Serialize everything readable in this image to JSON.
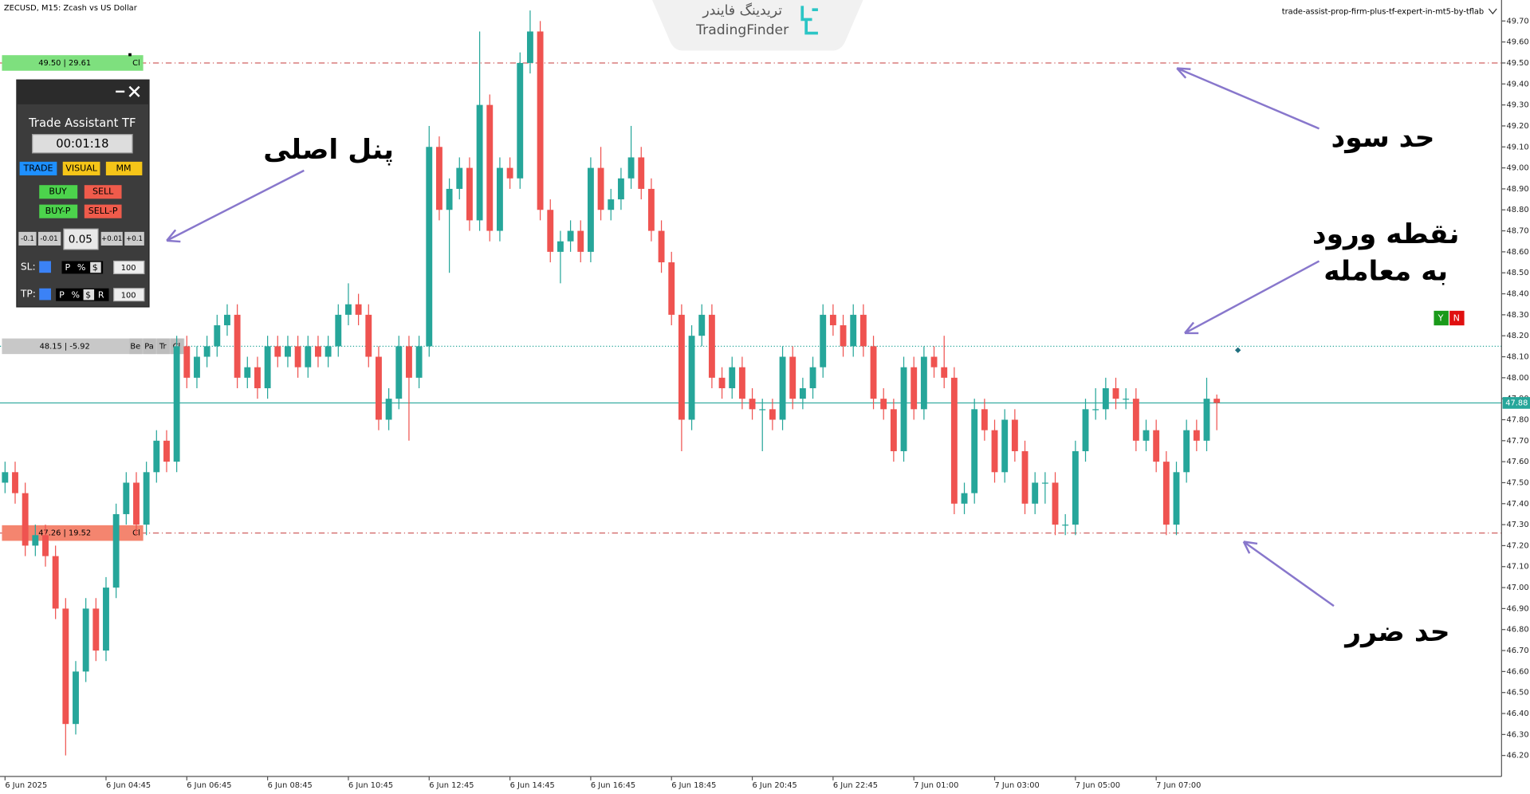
{
  "chart_data": {
    "type": "candlestick",
    "title": "ZECUSD, M15:  Zcash vs US Dollar",
    "subtitle": "trade-assist-prop-firm-plus-tf-expert-in-mt5-by-tflab",
    "up_color": "#26a69a",
    "down_color": "#ef5350",
    "open": [
      47.5,
      47.55,
      47.45,
      47.2,
      47.25,
      47.15,
      46.9,
      46.35,
      46.6,
      46.9,
      46.7,
      47.0,
      47.35,
      47.5,
      47.3,
      47.55,
      47.7,
      47.6,
      48.15,
      48.0,
      48.1,
      48.15,
      48.25,
      48.3,
      48.0,
      48.05,
      47.95,
      48.15,
      48.1,
      48.15,
      48.05,
      48.15,
      48.1,
      48.15,
      48.3,
      48.35,
      48.3,
      48.1,
      47.8,
      47.9,
      48.15,
      48.0,
      48.15,
      49.1,
      48.8,
      48.9,
      49.0,
      48.75,
      49.3,
      48.7,
      49.0,
      48.95,
      49.5,
      49.65,
      48.8,
      48.6,
      48.65,
      48.7,
      48.6,
      49.0,
      48.8,
      48.85,
      48.95,
      49.05,
      48.9,
      48.7,
      48.55,
      48.3,
      47.8,
      48.2,
      48.3,
      48.0,
      47.95,
      48.05,
      47.9,
      47.85,
      47.85,
      47.8,
      48.1,
      47.9,
      47.95,
      48.05,
      48.3,
      48.25,
      48.15,
      48.3,
      48.15,
      47.9,
      47.85,
      47.65,
      48.05,
      47.85,
      48.1,
      48.05,
      48.0,
      47.4,
      47.45,
      47.85,
      47.75,
      47.55,
      47.8,
      47.65,
      47.4,
      47.5,
      47.5,
      47.3,
      47.3,
      47.65,
      47.85,
      47.85,
      47.95,
      47.9,
      47.9,
      47.7,
      47.75,
      47.6,
      47.3,
      47.55,
      47.75,
      47.7,
      47.9
    ],
    "high": [
      47.6,
      47.6,
      47.5,
      47.3,
      47.3,
      47.2,
      46.95,
      46.65,
      46.95,
      46.95,
      47.05,
      47.4,
      47.55,
      47.55,
      47.6,
      47.75,
      47.75,
      48.2,
      48.2,
      48.15,
      48.2,
      48.3,
      48.35,
      48.35,
      48.1,
      48.1,
      48.2,
      48.2,
      48.2,
      48.2,
      48.2,
      48.2,
      48.2,
      48.35,
      48.45,
      48.4,
      48.35,
      48.15,
      47.95,
      48.2,
      48.2,
      48.2,
      49.2,
      49.15,
      48.95,
      49.05,
      49.05,
      49.65,
      49.35,
      49.05,
      49.05,
      49.55,
      49.75,
      49.7,
      48.85,
      48.7,
      48.75,
      48.75,
      49.05,
      49.1,
      48.9,
      49.0,
      49.2,
      49.1,
      48.95,
      48.75,
      48.6,
      48.35,
      48.25,
      48.35,
      48.35,
      48.05,
      48.1,
      48.1,
      47.95,
      47.9,
      47.9,
      48.15,
      48.15,
      48.0,
      48.1,
      48.35,
      48.35,
      48.3,
      48.35,
      48.35,
      48.2,
      47.95,
      47.9,
      48.1,
      48.1,
      48.15,
      48.15,
      48.2,
      48.05,
      47.5,
      47.9,
      47.9,
      47.8,
      47.85,
      47.85,
      47.7,
      47.55,
      47.55,
      47.55,
      47.35,
      47.7,
      47.9,
      47.95,
      48.0,
      48.0,
      47.95,
      47.95,
      47.8,
      47.8,
      47.65,
      47.6,
      47.8,
      47.8,
      48.0,
      47.92
    ],
    "low": [
      47.45,
      47.4,
      47.15,
      47.15,
      47.1,
      46.85,
      46.2,
      46.3,
      46.55,
      46.65,
      46.65,
      46.95,
      47.3,
      47.25,
      47.25,
      47.5,
      47.55,
      47.55,
      47.95,
      47.95,
      48.05,
      48.1,
      48.2,
      47.95,
      47.95,
      47.9,
      47.9,
      48.05,
      48.05,
      48.0,
      48.0,
      48.05,
      48.05,
      48.1,
      48.25,
      48.25,
      48.05,
      47.75,
      47.75,
      47.85,
      47.7,
      47.95,
      48.1,
      48.75,
      48.5,
      48.85,
      48.7,
      48.7,
      48.65,
      48.65,
      48.9,
      48.9,
      49.45,
      48.75,
      48.55,
      48.45,
      48.6,
      48.55,
      48.55,
      48.75,
      48.75,
      48.8,
      48.9,
      48.85,
      48.65,
      48.5,
      48.25,
      47.65,
      47.75,
      48.15,
      47.95,
      47.9,
      47.9,
      47.85,
      47.8,
      47.65,
      47.75,
      47.75,
      47.85,
      47.85,
      47.9,
      48.0,
      48.2,
      48.1,
      48.1,
      48.1,
      47.85,
      47.8,
      47.6,
      47.6,
      47.8,
      47.8,
      48.0,
      47.95,
      47.35,
      47.35,
      47.4,
      47.7,
      47.5,
      47.5,
      47.6,
      47.35,
      47.35,
      47.4,
      47.25,
      47.25,
      47.25,
      47.6,
      47.8,
      47.8,
      47.85,
      47.85,
      47.65,
      47.65,
      47.55,
      47.25,
      47.25,
      47.5,
      47.65,
      47.65,
      47.75
    ],
    "close": [
      47.55,
      47.45,
      47.2,
      47.25,
      47.15,
      46.9,
      46.35,
      46.6,
      46.9,
      46.7,
      47.0,
      47.35,
      47.5,
      47.3,
      47.55,
      47.7,
      47.6,
      48.15,
      48.0,
      48.1,
      48.15,
      48.25,
      48.3,
      48.0,
      48.05,
      47.95,
      48.15,
      48.1,
      48.15,
      48.05,
      48.15,
      48.1,
      48.15,
      48.3,
      48.35,
      48.3,
      48.1,
      47.8,
      47.9,
      48.15,
      48.0,
      48.15,
      49.1,
      48.8,
      48.9,
      49.0,
      48.75,
      49.3,
      48.7,
      49.0,
      48.95,
      49.5,
      49.65,
      48.8,
      48.6,
      48.65,
      48.7,
      48.6,
      49.0,
      48.8,
      48.85,
      48.95,
      49.05,
      48.9,
      48.7,
      48.55,
      48.3,
      47.8,
      48.2,
      48.3,
      48.0,
      47.95,
      48.05,
      47.9,
      47.85,
      47.85,
      47.8,
      48.1,
      47.9,
      47.95,
      48.05,
      48.3,
      48.25,
      48.15,
      48.3,
      48.15,
      47.9,
      47.85,
      47.65,
      48.05,
      47.85,
      48.1,
      48.05,
      48.0,
      47.4,
      47.45,
      47.85,
      47.75,
      47.55,
      47.8,
      47.65,
      47.4,
      47.5,
      47.5,
      47.3,
      47.3,
      47.65,
      47.85,
      47.85,
      47.95,
      47.9,
      47.9,
      47.7,
      47.75,
      47.6,
      47.3,
      47.55,
      47.75,
      47.7,
      47.9,
      47.88
    ],
    "xlim": [
      -0.5,
      148.2
    ],
    "xticks": [
      {
        "value": 0,
        "label": "6 Jun 2025"
      },
      {
        "value": 10,
        "label": "6 Jun 04:45"
      },
      {
        "value": 18,
        "label": "6 Jun 06:45"
      },
      {
        "value": 26,
        "label": "6 Jun 08:45"
      },
      {
        "value": 34,
        "label": "6 Jun 10:45"
      },
      {
        "value": 42,
        "label": "6 Jun 12:45"
      },
      {
        "value": 50,
        "label": "6 Jun 14:45"
      },
      {
        "value": 58,
        "label": "6 Jun 16:45"
      },
      {
        "value": 66,
        "label": "6 Jun 18:45"
      },
      {
        "value": 74,
        "label": "6 Jun 20:45"
      },
      {
        "value": 82,
        "label": "6 Jun 22:45"
      },
      {
        "value": 90,
        "label": "7 Jun 01:00"
      },
      {
        "value": 98,
        "label": "7 Jun 03:00"
      },
      {
        "value": 106,
        "label": "7 Jun 05:00"
      },
      {
        "value": 114,
        "label": "7 Jun 07:00"
      }
    ],
    "ylim": [
      46.1,
      49.8
    ],
    "yticks": [
      {
        "value": 46.2,
        "label": "46.20"
      },
      {
        "value": 46.3,
        "label": "46.30"
      },
      {
        "value": 46.4,
        "label": "46.40"
      },
      {
        "value": 46.5,
        "label": "46.50"
      },
      {
        "value": 46.6,
        "label": "46.60"
      },
      {
        "value": 46.7,
        "label": "46.70"
      },
      {
        "value": 46.8,
        "label": "46.80"
      },
      {
        "value": 46.9,
        "label": "46.90"
      },
      {
        "value": 47.0,
        "label": "47.00"
      },
      {
        "value": 47.1,
        "label": "47.10"
      },
      {
        "value": 47.2,
        "label": "47.20"
      },
      {
        "value": 47.3,
        "label": "47.30"
      },
      {
        "value": 47.4,
        "label": "47.40"
      },
      {
        "value": 47.5,
        "label": "47.50"
      },
      {
        "value": 47.6,
        "label": "47.60"
      },
      {
        "value": 47.7,
        "label": "47.70"
      },
      {
        "value": 47.8,
        "label": "47.80"
      },
      {
        "value": 47.9,
        "label": "47.90"
      },
      {
        "value": 48.0,
        "label": "48.00"
      },
      {
        "value": 48.1,
        "label": "48.10"
      },
      {
        "value": 48.2,
        "label": "48.20"
      },
      {
        "value": 48.3,
        "label": "48.30"
      },
      {
        "value": 48.4,
        "label": "48.40"
      },
      {
        "value": 48.5,
        "label": "48.50"
      },
      {
        "value": 48.6,
        "label": "48.60"
      },
      {
        "value": 48.7,
        "label": "48.70"
      },
      {
        "value": 48.8,
        "label": "48.80"
      },
      {
        "value": 48.9,
        "label": "48.90"
      },
      {
        "value": 49.0,
        "label": "49.00"
      },
      {
        "value": 49.1,
        "label": "49.10"
      },
      {
        "value": 49.2,
        "label": "49.20"
      },
      {
        "value": 49.3,
        "label": "49.30"
      },
      {
        "value": 49.4,
        "label": "49.40"
      },
      {
        "value": 49.5,
        "label": "49.50"
      },
      {
        "value": 49.6,
        "label": "49.60"
      },
      {
        "value": 49.7,
        "label": "49.70"
      }
    ],
    "last_price": 47.88,
    "take_profit": {
      "value": 49.5,
      "label": "49.50 | 29.61",
      "close": "Cl"
    },
    "entry": {
      "value": 48.15,
      "label": "48.15 | -5.92",
      "buttons": [
        "Be",
        "Pa",
        "Tr",
        "Cl"
      ]
    },
    "stop_loss": {
      "value": 47.26,
      "label": "47.26 | 19.52",
      "close": "Cl"
    }
  },
  "logo": {
    "fa": "تریدینگ فایندر",
    "en": "TradingFinder"
  },
  "panel": {
    "title": "Trade Assistant TF",
    "timer": "00:01:18",
    "modes": [
      "TRADE",
      "VISUAL",
      "MM"
    ],
    "orders": [
      "BUY",
      "SELL",
      "BUY-P",
      "SELL-P"
    ],
    "steps": [
      "-0.1",
      "-0.01",
      "0.05",
      "+0.01",
      "+0.1"
    ],
    "sl_label": "SL:",
    "sl_units": [
      "P",
      "%",
      "$"
    ],
    "sl_value": "100",
    "tp_label": "TP:",
    "tp_units": [
      "P",
      "%",
      "$",
      "R"
    ],
    "tp_value": "100"
  },
  "yn": [
    "Y",
    "N"
  ],
  "annotations": {
    "take_profit": "حد سود",
    "panel": "پنل اصلی",
    "entry_1": "نقطه ورود",
    "entry_2": "به معامله",
    "stop_loss": "حد ضرر"
  }
}
